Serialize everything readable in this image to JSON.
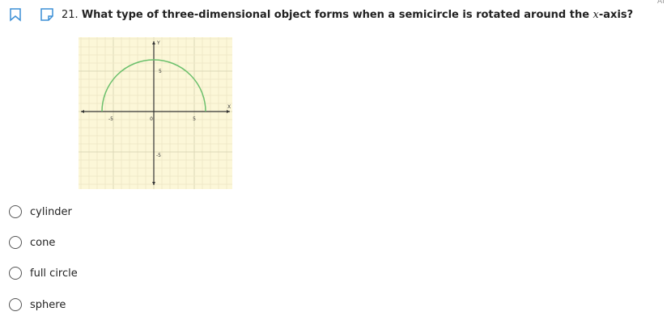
{
  "corner_label": "AI",
  "question": {
    "number": "21.",
    "text_before": "What type of three-dimensional object forms when a semicircle is rotated around the ",
    "variable": "x",
    "text_after": "-axis?"
  },
  "graph": {
    "x_axis_label": "X",
    "y_axis_label": "Y",
    "x_tick_labels": [
      "-5",
      "0",
      "5"
    ],
    "y_tick_labels": [
      "5",
      "-5"
    ]
  },
  "options": [
    "cylinder",
    "cone",
    "full circle",
    "sphere"
  ]
}
